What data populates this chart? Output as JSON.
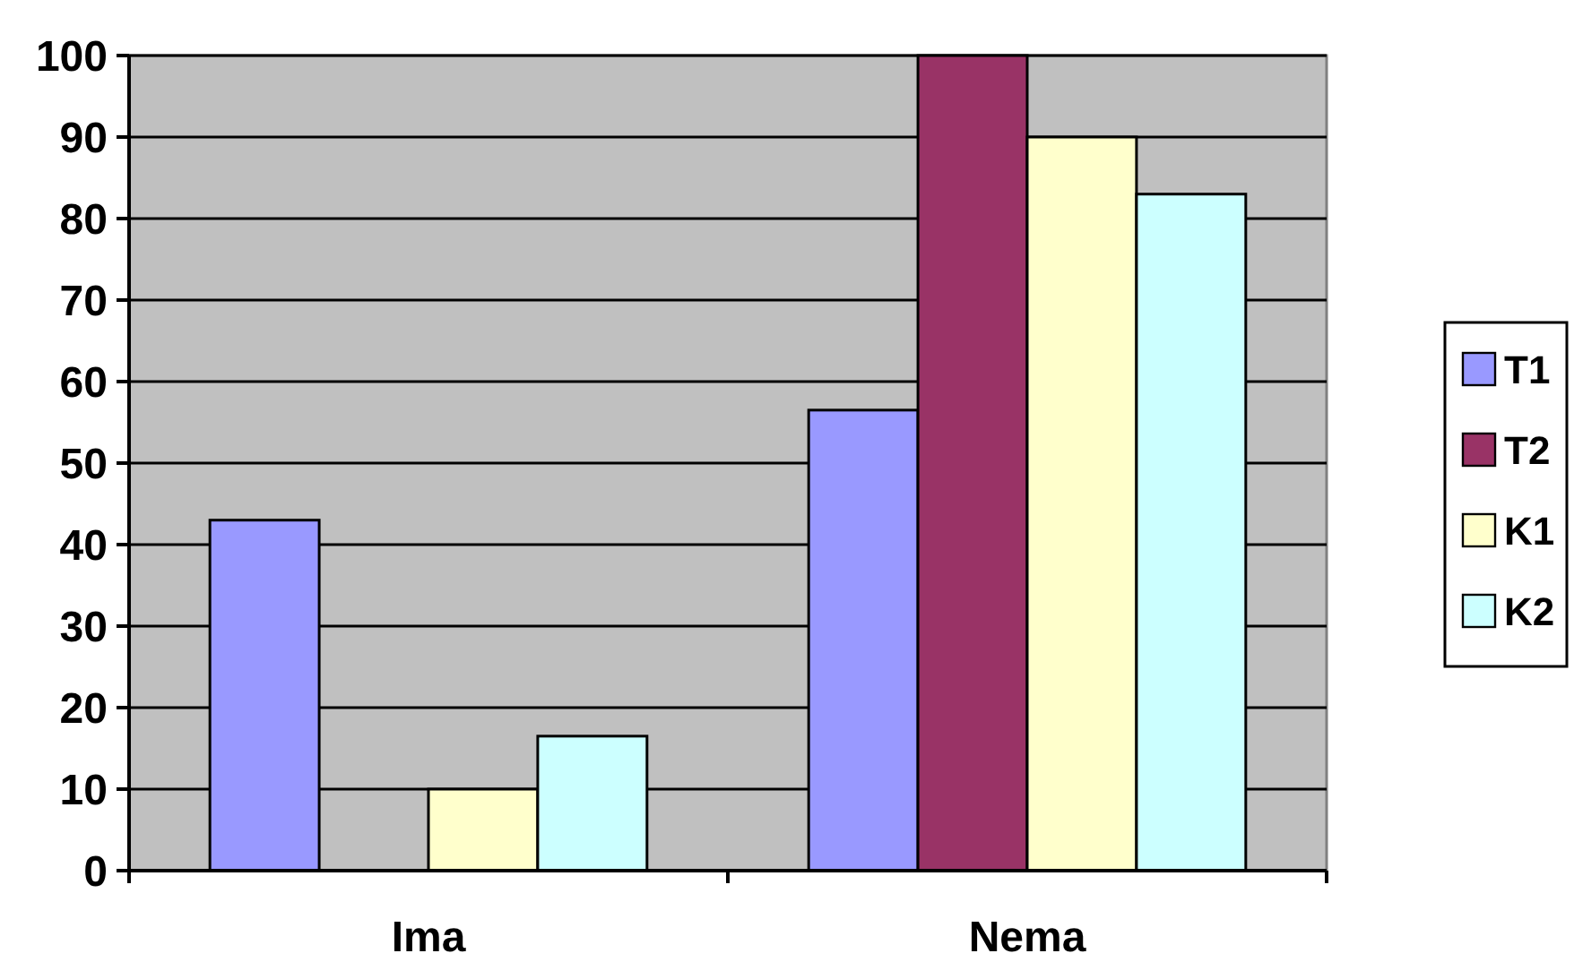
{
  "chart_data": {
    "type": "bar",
    "categories": [
      "Ima",
      "Nema"
    ],
    "series": [
      {
        "name": "T1",
        "color": "#9999ff",
        "values": [
          43,
          56.5
        ]
      },
      {
        "name": "T2",
        "color": "#993366",
        "values": [
          0,
          100
        ]
      },
      {
        "name": "K1",
        "color": "#ffffcc",
        "values": [
          10,
          90
        ]
      },
      {
        "name": "K2",
        "color": "#ccffff",
        "values": [
          16.5,
          83
        ]
      }
    ],
    "ylim": [
      0,
      100
    ],
    "yticks": [
      0,
      10,
      20,
      30,
      40,
      50,
      60,
      70,
      80,
      90,
      100
    ],
    "grid": "y",
    "legend": "right"
  }
}
